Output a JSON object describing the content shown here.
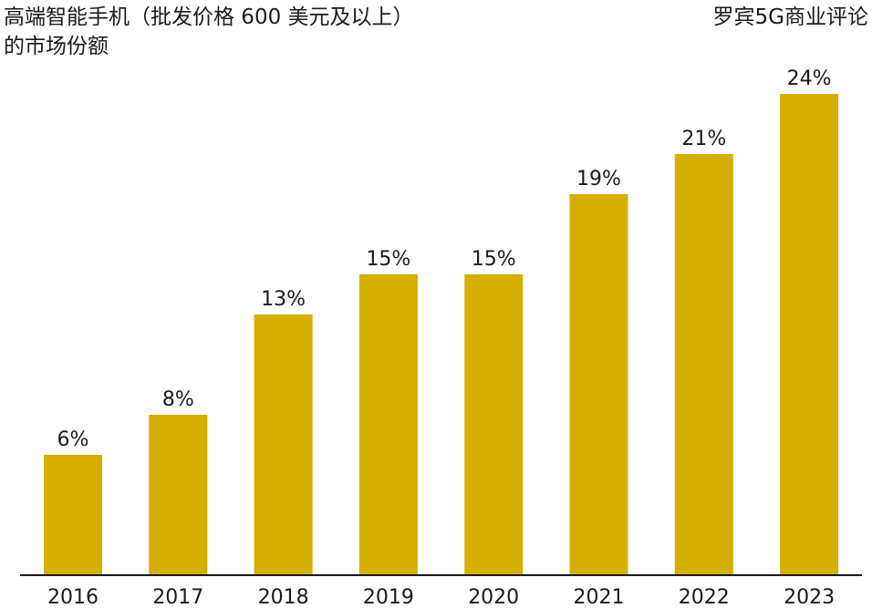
{
  "header": {
    "title_line1": "高端智能手机（批发价格 600 美元及以上）",
    "title_line2": "的市场份额",
    "source": "罗宾5G商业评论"
  },
  "colors": {
    "bar": "#D5AE02",
    "axis": "#1a1a1a"
  },
  "chart_data": {
    "type": "bar",
    "title": "高端智能手机（批发价格 600 美元及以上）的市场份额",
    "xlabel": "",
    "ylabel": "",
    "categories": [
      "2016",
      "2017",
      "2018",
      "2019",
      "2020",
      "2021",
      "2022",
      "2023"
    ],
    "values": [
      6,
      8,
      13,
      15,
      15,
      19,
      21,
      24
    ],
    "data_labels": [
      "6%",
      "8%",
      "13%",
      "15%",
      "15%",
      "19%",
      "21%",
      "24%"
    ],
    "unit": "%",
    "ylim": [
      0,
      24
    ],
    "grid": false,
    "legend": "none"
  }
}
